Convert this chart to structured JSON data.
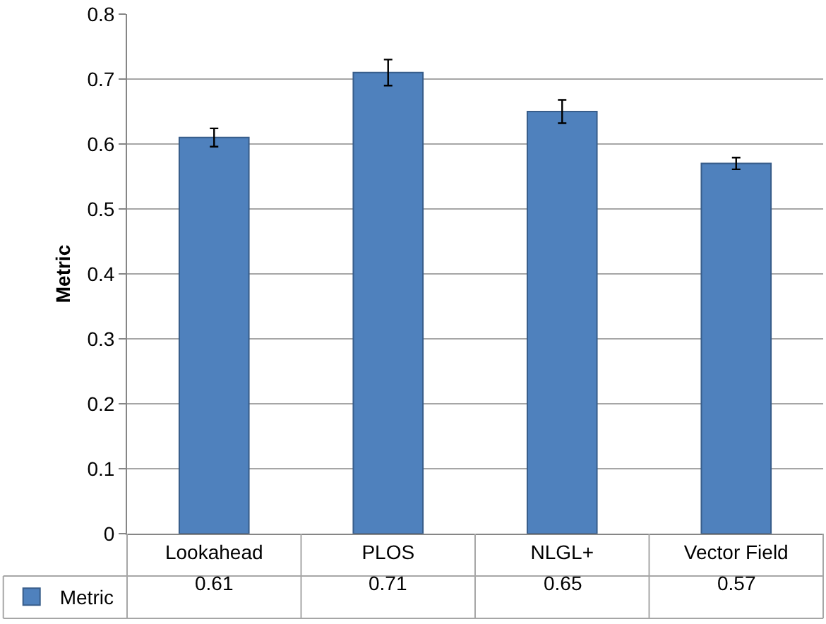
{
  "chart_data": {
    "type": "bar",
    "ylabel": "Metric",
    "categories": [
      "Lookahead",
      "PLOS",
      "NLGL+",
      "Vector Field"
    ],
    "series": [
      {
        "name": "Metric",
        "color": "#4f81bd",
        "values": [
          0.61,
          0.71,
          0.65,
          0.57
        ],
        "errors": [
          0.014,
          0.02,
          0.018,
          0.009
        ]
      }
    ],
    "ylim": [
      0,
      0.8
    ],
    "yticks": [
      0,
      0.1,
      0.2,
      0.3,
      0.4,
      0.5,
      0.6,
      0.7,
      0.8
    ],
    "grid": "y",
    "legend": "bottom",
    "data_labels": true
  }
}
